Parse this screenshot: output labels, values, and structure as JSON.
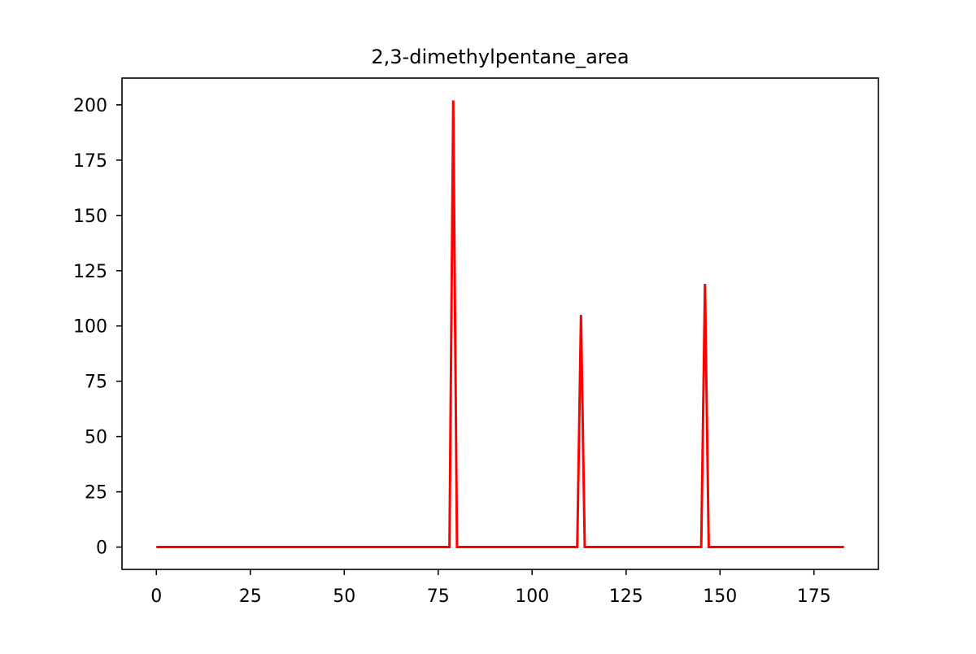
{
  "chart_data": {
    "type": "line",
    "title": "2,3-dimethylpentane_area",
    "xlabel": "",
    "ylabel": "",
    "xlim": [
      -9.15,
      192.15
    ],
    "ylim": [
      -10.1,
      212.1
    ],
    "x_ticks": [
      0,
      25,
      50,
      75,
      100,
      125,
      150,
      175
    ],
    "y_ticks": [
      0,
      25,
      50,
      75,
      100,
      125,
      150,
      175,
      200
    ],
    "grid": false,
    "legend": "none",
    "series": [
      {
        "color": "#ff0000",
        "x": [
          0,
          78,
          79,
          80,
          112,
          113,
          114,
          145,
          146,
          147,
          183
        ],
        "y": [
          0,
          0,
          202,
          0,
          0,
          105,
          0,
          0,
          119,
          0,
          0
        ]
      }
    ]
  }
}
